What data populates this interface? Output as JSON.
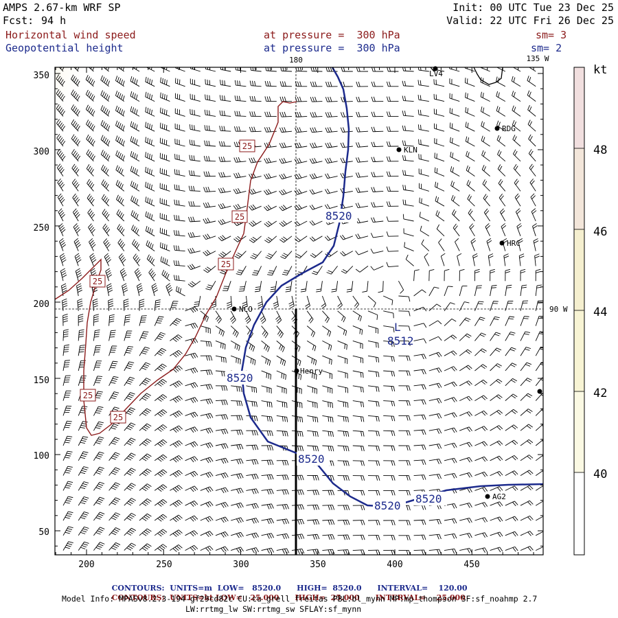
{
  "header": {
    "model": "AMPS 2.67-km WRF SP",
    "forecast_label": "Fcst:",
    "forecast_hours": "94 h",
    "init": "Init: 00 UTC Tue 23 Dec 25",
    "valid": "Valid: 22 UTC Fri 26 Dec 25",
    "field1": {
      "name": "Horizontal wind speed",
      "level": "at pressure =  300 hPa",
      "smooth": "sm= 3",
      "color": "#8b1a1a"
    },
    "field2": {
      "name": "Geopotential height",
      "level": "at pressure =  300 hPa",
      "smooth": "sm= 2",
      "color": "#1c2a8c"
    }
  },
  "map": {
    "x_ticks": [
      "200",
      "250",
      "300",
      "350",
      "400",
      "450"
    ],
    "y_ticks": [
      "50",
      "100",
      "150",
      "200",
      "250",
      "300",
      "350"
    ],
    "meridian_180": "180",
    "meridian_135w": "135 W",
    "meridian_90w": "90 W",
    "stations": [
      {
        "id": "LV4",
        "label": "LV4"
      },
      {
        "id": "RDG",
        "label": "RDG"
      },
      {
        "id": "KLN",
        "label": "KLN"
      },
      {
        "id": "HRC",
        "label": "HRC"
      },
      {
        "id": "NCO",
        "label": "NCO"
      },
      {
        "id": "Henry",
        "label": "Henry"
      },
      {
        "id": "AG2",
        "label": "AG2"
      },
      {
        "id": "edge",
        "label": ""
      }
    ],
    "height_labels": [
      "8520",
      "8520",
      "8520",
      "8520",
      "8520"
    ],
    "low_marker": "L",
    "low_value": "8512",
    "speed_labels": [
      "25",
      "25",
      "25",
      "25",
      "25",
      "25"
    ]
  },
  "colorbar": {
    "unit": "kt",
    "labels": [
      "48",
      "46",
      "44",
      "42",
      "40"
    ],
    "colors": [
      "#f1dfdf",
      "#f3e6da",
      "#f5efcf",
      "#f8f4d4",
      "#fbf9e3",
      "#ffffff"
    ]
  },
  "footer": {
    "row1": {
      "title": "CONTOURS:",
      "units": "UNITS=m",
      "low": "LOW=   8520.0",
      "high": "HIGH=  8520.0",
      "interval": "INTERVAL=    120.00",
      "color": "#1c2a8c"
    },
    "row2": {
      "title": "CONTOURS:",
      "units": "UNITS=kt",
      "low": "LOW=   25.000",
      "high": "HIGH=  25.000",
      "interval": "INTERVAL=    25.000",
      "color": "#8b1a1a"
    },
    "model_info": "Model Info: MPASv8.2.3-194-gf29cd82c CU:cu_grell_freitas PBL:bl_mynn MP:mp_thompson SF:sf_noahmp 2.7",
    "model_info2": "LW:rrtmg_lw SW:rrtmg_sw SFLAY:sf_mynn"
  }
}
